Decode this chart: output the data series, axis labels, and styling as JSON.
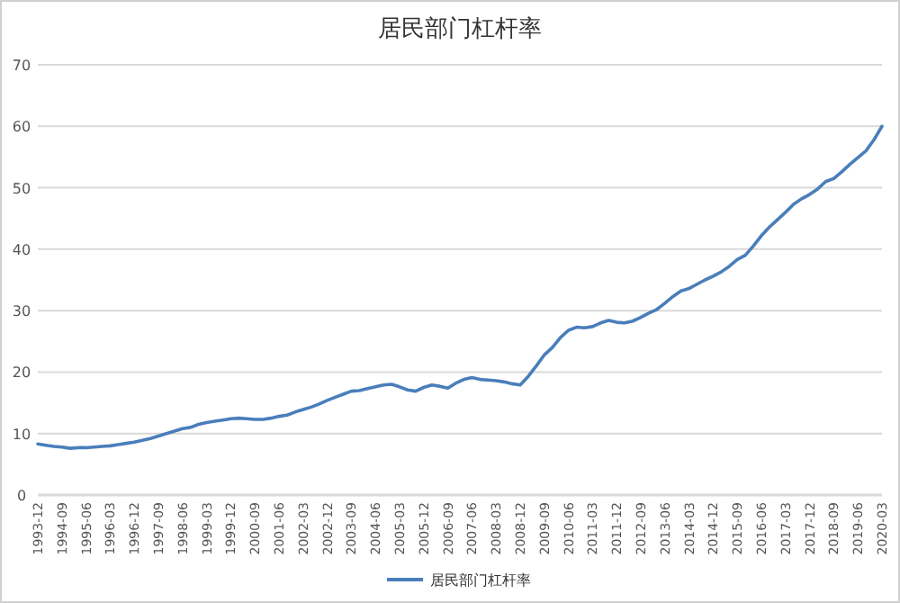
{
  "chart_data": {
    "type": "line",
    "title": "居民部门杠杆率",
    "categories": [
      "1993-12",
      null,
      null,
      "1994-09",
      null,
      null,
      "1995-06",
      null,
      null,
      "1996-03",
      null,
      null,
      "1996-12",
      null,
      null,
      "1997-09",
      null,
      null,
      "1998-06",
      null,
      null,
      "1999-03",
      null,
      null,
      "1999-12",
      null,
      null,
      "2000-09",
      null,
      null,
      "2001-06",
      null,
      null,
      "2002-03",
      null,
      null,
      "2002-12",
      null,
      null,
      "2003-09",
      null,
      null,
      "2004-06",
      null,
      null,
      "2005-03",
      null,
      null,
      "2005-12",
      null,
      null,
      "2006-09",
      null,
      null,
      "2007-06",
      null,
      null,
      "2008-03",
      null,
      null,
      "2008-12",
      null,
      null,
      "2009-09",
      null,
      null,
      "2010-06",
      null,
      null,
      "2011-03",
      null,
      null,
      "2011-12",
      null,
      null,
      "2012-09",
      null,
      null,
      "2013-06",
      null,
      null,
      "2014-03",
      null,
      null,
      "2014-12",
      null,
      null,
      "2015-09",
      null,
      null,
      "2016-06",
      null,
      null,
      "2017-03",
      null,
      null,
      "2017-12",
      null,
      null,
      "2018-09",
      null,
      null,
      "2019-06",
      null,
      null,
      "2020-03"
    ],
    "series": [
      {
        "name": "居民部门杠杆率",
        "color": "#4a7ebb",
        "values": [
          8.3,
          8.1,
          7.9,
          7.8,
          7.6,
          7.7,
          7.7,
          7.8,
          7.9,
          8.0,
          8.2,
          8.4,
          8.6,
          8.9,
          9.2,
          9.6,
          10.0,
          10.4,
          10.8,
          11.0,
          11.5,
          11.8,
          12.0,
          12.2,
          12.4,
          12.5,
          12.4,
          12.3,
          12.3,
          12.5,
          12.8,
          13.0,
          13.5,
          13.9,
          14.3,
          14.8,
          15.4,
          15.9,
          16.4,
          16.9,
          17.0,
          17.3,
          17.6,
          17.9,
          18.0,
          17.6,
          17.1,
          16.9,
          17.5,
          17.9,
          17.7,
          17.4,
          18.2,
          18.8,
          19.1,
          18.8,
          18.7,
          18.6,
          18.4,
          18.1,
          17.9,
          19.3,
          21.0,
          22.8,
          24.0,
          25.6,
          26.8,
          27.3,
          27.2,
          27.4,
          28.0,
          28.4,
          28.1,
          28.0,
          28.3,
          28.9,
          29.6,
          30.2,
          31.2,
          32.3,
          33.2,
          33.6,
          34.3,
          35.0,
          35.6,
          36.3,
          37.2,
          38.3,
          39.0,
          40.5,
          42.2,
          43.6,
          44.8,
          46.0,
          47.3,
          48.2,
          48.9,
          49.8,
          51.0,
          51.5,
          52.6,
          53.8,
          54.9,
          56.0,
          57.8,
          60.0
        ]
      }
    ],
    "ylim": [
      0,
      70
    ],
    "yticks": [
      0,
      10,
      20,
      30,
      40,
      50,
      60,
      70
    ],
    "grid": "y",
    "legend": "bottom",
    "marker": "none",
    "line_style": "solid"
  }
}
